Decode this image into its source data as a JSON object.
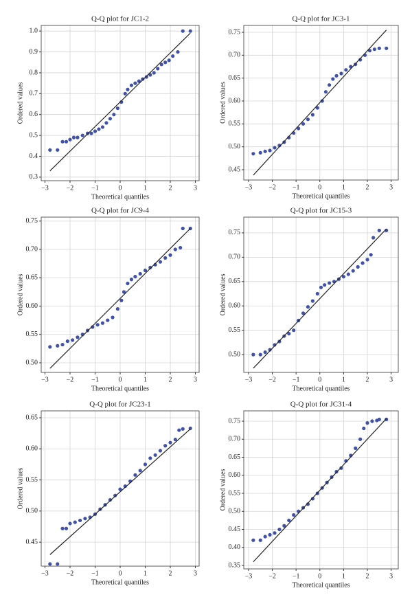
{
  "chart_data": [
    {
      "type": "scatter",
      "title": "Q-Q plot for JC1-2",
      "xlabel": "Theoretical quantiles",
      "ylabel": "Ordered values",
      "grid": true,
      "xlim": [
        -3.15,
        3.15
      ],
      "ylim": [
        0.283,
        1.027
      ],
      "xticks": [
        {
          "value": -3,
          "label": "−3"
        },
        {
          "value": -2,
          "label": "−2"
        },
        {
          "value": -1,
          "label": "−1"
        },
        0,
        1,
        2,
        3
      ],
      "yticks": [
        0.3,
        0.4,
        0.5,
        0.6,
        0.7,
        0.8,
        0.9,
        {
          "value": 1,
          "label": "1.0"
        }
      ],
      "series": [
        {
          "color": "#3f51a8",
          "x": [
            -2.8,
            -2.5,
            -2.3,
            -2.15,
            -2.0,
            -1.85,
            -1.7,
            -1.5,
            -1.3,
            -1.15,
            -1.0,
            -0.85,
            -0.7,
            -0.55,
            -0.4,
            -0.25,
            -0.1,
            0.05,
            0.2,
            0.3,
            0.45,
            0.6,
            0.75,
            0.9,
            1.05,
            1.2,
            1.35,
            1.5,
            1.65,
            1.8,
            1.95,
            2.1,
            2.3,
            2.5,
            2.8
          ],
          "values": [
            0.43,
            0.43,
            0.47,
            0.47,
            0.48,
            0.49,
            0.49,
            0.5,
            0.51,
            0.51,
            0.52,
            0.53,
            0.54,
            0.56,
            0.58,
            0.6,
            0.63,
            0.66,
            0.7,
            0.72,
            0.74,
            0.75,
            0.76,
            0.77,
            0.78,
            0.79,
            0.8,
            0.82,
            0.84,
            0.85,
            0.86,
            0.88,
            0.9,
            1.0,
            1.0
          ]
        },
        {
          "type": "line",
          "color": "#222222",
          "x": [
            -2.8,
            2.8
          ],
          "values": [
            0.33,
            0.99
          ]
        }
      ]
    },
    {
      "type": "scatter",
      "title": "Q-Q plot for JC3-1",
      "xlabel": "Theoretical quantiles",
      "ylabel": "Ordered values",
      "grid": true,
      "xlim": [
        -3.2,
        3.3
      ],
      "ylim": [
        0.4275,
        0.765
      ],
      "xticks": [
        {
          "value": -3,
          "label": "−3"
        },
        {
          "value": -2,
          "label": "−2"
        },
        {
          "value": -1,
          "label": "−1"
        },
        0,
        1,
        2,
        3
      ],
      "yticks": [
        0.45,
        {
          "value": 0.5,
          "label": "0.50"
        },
        0.55,
        {
          "value": 0.6,
          "label": "0.60"
        },
        0.65,
        {
          "value": 0.7,
          "label": "0.70"
        },
        0.75
      ],
      "series": [
        {
          "color": "#3f51a8",
          "x": [
            -2.8,
            -2.5,
            -2.3,
            -2.1,
            -1.9,
            -1.7,
            -1.5,
            -1.3,
            -1.1,
            -0.9,
            -0.7,
            -0.5,
            -0.3,
            -0.1,
            0.1,
            0.25,
            0.4,
            0.55,
            0.7,
            0.9,
            1.1,
            1.3,
            1.5,
            1.7,
            1.9,
            2.1,
            2.3,
            2.5,
            2.8
          ],
          "values": [
            0.485,
            0.487,
            0.49,
            0.492,
            0.498,
            0.503,
            0.51,
            0.52,
            0.53,
            0.54,
            0.55,
            0.56,
            0.57,
            0.585,
            0.6,
            0.62,
            0.635,
            0.648,
            0.655,
            0.66,
            0.668,
            0.675,
            0.68,
            0.69,
            0.7,
            0.71,
            0.713,
            0.715,
            0.715
          ]
        },
        {
          "type": "line",
          "color": "#222222",
          "x": [
            -2.8,
            2.8
          ],
          "values": [
            0.438,
            0.755
          ]
        }
      ]
    },
    {
      "type": "scatter",
      "title": "Q-Q plot for JC9-4",
      "xlabel": "Theoretical quantiles",
      "ylabel": "Ordered values",
      "grid": true,
      "xlim": [
        -3.15,
        3.15
      ],
      "ylim": [
        0.483,
        0.757
      ],
      "xticks": [
        {
          "value": -3,
          "label": "−3"
        },
        {
          "value": -2,
          "label": "−2"
        },
        {
          "value": -1,
          "label": "−1"
        },
        0,
        1,
        2,
        3
      ],
      "yticks": [
        {
          "value": 0.5,
          "label": "0.50"
        },
        0.55,
        {
          "value": 0.6,
          "label": "0.60"
        },
        0.65,
        {
          "value": 0.7,
          "label": "0.70"
        },
        0.75
      ],
      "series": [
        {
          "color": "#3f51a8",
          "x": [
            -2.8,
            -2.5,
            -2.3,
            -2.1,
            -1.9,
            -1.7,
            -1.5,
            -1.3,
            -1.1,
            -0.9,
            -0.7,
            -0.5,
            -0.3,
            -0.1,
            0.05,
            0.15,
            0.3,
            0.45,
            0.6,
            0.8,
            1.0,
            1.2,
            1.4,
            1.6,
            1.8,
            2.0,
            2.2,
            2.4,
            2.5,
            2.8
          ],
          "values": [
            0.528,
            0.53,
            0.532,
            0.538,
            0.54,
            0.545,
            0.55,
            0.557,
            0.563,
            0.567,
            0.57,
            0.575,
            0.58,
            0.595,
            0.61,
            0.625,
            0.64,
            0.647,
            0.652,
            0.657,
            0.663,
            0.668,
            0.673,
            0.678,
            0.685,
            0.69,
            0.7,
            0.703,
            0.737,
            0.737
          ]
        },
        {
          "type": "line",
          "color": "#222222",
          "x": [
            -2.8,
            2.8
          ],
          "values": [
            0.49,
            0.737
          ]
        }
      ]
    },
    {
      "type": "scatter",
      "title": "Q-Q plot for JC15-3",
      "xlabel": "Theoretical quantiles",
      "ylabel": "Ordered values",
      "grid": true,
      "xlim": [
        -3.2,
        3.3
      ],
      "ylim": [
        0.4635,
        0.7823
      ],
      "xticks": [
        {
          "value": -3,
          "label": "−3"
        },
        {
          "value": -2,
          "label": "−2"
        },
        {
          "value": -1,
          "label": "−1"
        },
        0,
        1,
        2,
        3
      ],
      "yticks": [
        {
          "value": 0.5,
          "label": "0.50"
        },
        0.55,
        {
          "value": 0.6,
          "label": "0.60"
        },
        0.65,
        {
          "value": 0.7,
          "label": "0.70"
        },
        0.75
      ],
      "series": [
        {
          "color": "#3f51a8",
          "x": [
            -2.8,
            -2.5,
            -2.3,
            -2.1,
            -1.9,
            -1.7,
            -1.5,
            -1.3,
            -1.1,
            -0.9,
            -0.7,
            -0.5,
            -0.3,
            -0.1,
            0.05,
            0.2,
            0.4,
            0.6,
            0.8,
            1.0,
            1.2,
            1.4,
            1.6,
            1.8,
            2.0,
            2.15,
            2.25,
            2.5,
            2.8
          ],
          "values": [
            0.5,
            0.5,
            0.505,
            0.51,
            0.52,
            0.527,
            0.538,
            0.543,
            0.55,
            0.57,
            0.585,
            0.598,
            0.61,
            0.625,
            0.638,
            0.643,
            0.647,
            0.65,
            0.655,
            0.66,
            0.665,
            0.672,
            0.68,
            0.688,
            0.695,
            0.705,
            0.74,
            0.755,
            0.755
          ]
        },
        {
          "type": "line",
          "color": "#222222",
          "x": [
            -2.8,
            2.8
          ],
          "values": [
            0.472,
            0.758
          ]
        }
      ]
    },
    {
      "type": "scatter",
      "title": "Q-Q plot for JC23-1",
      "xlabel": "Theoretical quantiles",
      "ylabel": "Ordered values",
      "grid": true,
      "xlim": [
        -3.15,
        3.15
      ],
      "ylim": [
        0.4115,
        0.661
      ],
      "xticks": [
        {
          "value": -3,
          "label": "−3"
        },
        {
          "value": -2,
          "label": "−2"
        },
        {
          "value": -1,
          "label": "−1"
        },
        0,
        1,
        2,
        3
      ],
      "yticks": [
        0.45,
        {
          "value": 0.5,
          "label": "0.50"
        },
        0.55,
        {
          "value": 0.6,
          "label": "0.60"
        },
        0.65
      ],
      "series": [
        {
          "color": "#3f51a8",
          "x": [
            -2.8,
            -2.5,
            -2.3,
            -2.15,
            -2.0,
            -1.8,
            -1.6,
            -1.4,
            -1.2,
            -1.0,
            -0.8,
            -0.6,
            -0.4,
            -0.2,
            0.0,
            0.2,
            0.4,
            0.6,
            0.8,
            1.0,
            1.2,
            1.4,
            1.6,
            1.8,
            2.0,
            2.2,
            2.35,
            2.5,
            2.8
          ],
          "values": [
            0.415,
            0.415,
            0.472,
            0.472,
            0.48,
            0.482,
            0.485,
            0.488,
            0.49,
            0.495,
            0.503,
            0.51,
            0.518,
            0.525,
            0.535,
            0.54,
            0.548,
            0.558,
            0.565,
            0.575,
            0.585,
            0.59,
            0.597,
            0.605,
            0.61,
            0.615,
            0.63,
            0.632,
            0.633
          ]
        },
        {
          "type": "line",
          "color": "#222222",
          "x": [
            -2.8,
            2.8
          ],
          "values": [
            0.43,
            0.632
          ]
        }
      ]
    },
    {
      "type": "scatter",
      "title": "Q-Q plot for JC31-4",
      "xlabel": "Theoretical quantiles",
      "ylabel": "Ordered values",
      "grid": true,
      "xlim": [
        -3.2,
        3.3
      ],
      "ylim": [
        0.3405,
        0.7786
      ],
      "xticks": [
        {
          "value": -3,
          "label": "−3"
        },
        {
          "value": -2,
          "label": "−2"
        },
        {
          "value": -1,
          "label": "−1"
        },
        0,
        1,
        2,
        3
      ],
      "yticks": [
        0.35,
        {
          "value": 0.4,
          "label": "0.40"
        },
        0.45,
        {
          "value": 0.5,
          "label": "0.50"
        },
        0.55,
        {
          "value": 0.6,
          "label": "0.60"
        },
        0.65,
        {
          "value": 0.7,
          "label": "0.70"
        },
        0.75
      ],
      "series": [
        {
          "color": "#3f51a8",
          "x": [
            -2.8,
            -2.5,
            -2.3,
            -2.1,
            -1.9,
            -1.7,
            -1.5,
            -1.3,
            -1.1,
            -0.9,
            -0.7,
            -0.5,
            -0.3,
            -0.1,
            0.1,
            0.3,
            0.5,
            0.7,
            0.9,
            1.1,
            1.3,
            1.5,
            1.7,
            1.85,
            2.0,
            2.2,
            2.4,
            2.5,
            2.8
          ],
          "values": [
            0.42,
            0.42,
            0.43,
            0.435,
            0.44,
            0.45,
            0.46,
            0.475,
            0.49,
            0.5,
            0.51,
            0.52,
            0.535,
            0.55,
            0.565,
            0.58,
            0.595,
            0.61,
            0.62,
            0.64,
            0.655,
            0.675,
            0.7,
            0.73,
            0.745,
            0.75,
            0.752,
            0.755,
            0.755
          ]
        },
        {
          "type": "line",
          "color": "#222222",
          "x": [
            -2.8,
            2.8
          ],
          "values": [
            0.36,
            0.757
          ]
        }
      ]
    }
  ]
}
